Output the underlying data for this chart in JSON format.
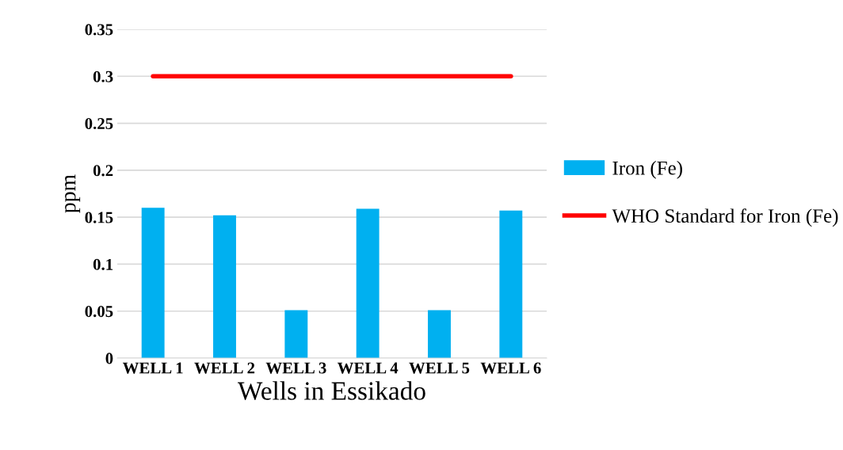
{
  "chart_data": {
    "type": "bar",
    "xlabel": "Wells in Essikado",
    "ylabel": "ppm",
    "categories": [
      "WELL 1",
      "WELL 2",
      "WELL 3",
      "WELL 4",
      "WELL 5",
      "WELL 6"
    ],
    "series": [
      {
        "name": "Iron (Fe)",
        "color": "#00b0f0",
        "values": [
          0.16,
          0.152,
          0.051,
          0.159,
          0.051,
          0.157
        ]
      },
      {
        "name": "WHO Standard for Iron (Fe)",
        "type": "line",
        "color": "#ff0000",
        "values": [
          0.3,
          0.3,
          0.3,
          0.3,
          0.3,
          0.3
        ]
      }
    ],
    "ylim": [
      0,
      0.35
    ],
    "yticks": [
      0,
      0.05,
      0.1,
      0.15,
      0.2,
      0.25,
      0.3,
      0.35
    ],
    "grid": "y",
    "legend": "right",
    "marker": "none"
  }
}
